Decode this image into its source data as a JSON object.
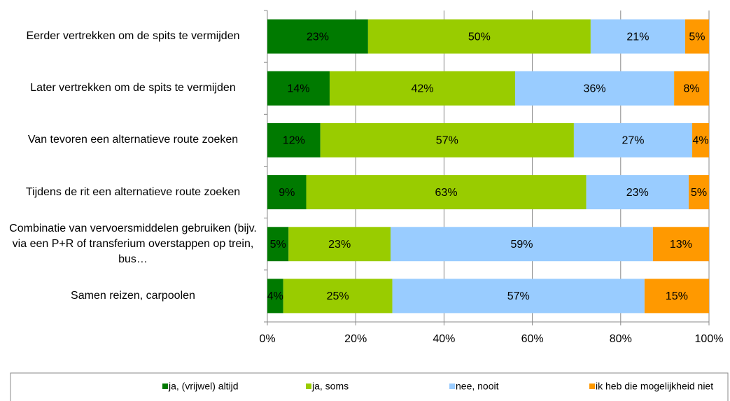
{
  "chart_data": {
    "type": "stacked_bar_horizontal",
    "categories": [
      "Eerder vertrekken om de spits te vermijden",
      "Later vertrekken om de spits te vermijden",
      "Van tevoren een alternatieve route zoeken",
      "Tijdens de rit een alternatieve route zoeken",
      "Combinatie van vervoersmiddelen gebruiken (bijv. via een P+R of transferium overstappen op trein, bus…",
      "Samen reizen, carpoolen"
    ],
    "series": [
      {
        "name": "ja, (vrijwel) altijd",
        "color": "#007a00",
        "values": [
          22.8,
          14.1,
          12.0,
          8.8,
          4.8,
          3.6
        ],
        "value_labels": [
          "23%",
          "14%",
          "12%",
          "9%",
          "5%",
          "4%"
        ]
      },
      {
        "name": "ja, soms",
        "color": "#99cc00",
        "values": [
          50.4,
          42.0,
          57.4,
          63.4,
          23.1,
          24.7
        ],
        "value_labels": [
          "50%",
          "42%",
          "57%",
          "63%",
          "23%",
          "25%"
        ]
      },
      {
        "name": "nee, nooit",
        "color": "#99ccff",
        "values": [
          21.4,
          36.0,
          26.8,
          23.2,
          59.4,
          57.1
        ],
        "value_labels": [
          "21%",
          "36%",
          "27%",
          "23%",
          "59%",
          "57%"
        ]
      },
      {
        "name": "ik heb die mogelijkheid niet",
        "color": "#ff9900",
        "values": [
          5.4,
          7.9,
          3.8,
          4.6,
          12.7,
          14.6
        ],
        "value_labels": [
          "5%",
          "8%",
          "4%",
          "5%",
          "13%",
          "15%"
        ]
      }
    ],
    "xlim": [
      0,
      100
    ],
    "xticks": [
      {
        "value": 0,
        "label": "0%"
      },
      {
        "value": 20,
        "label": "20%"
      },
      {
        "value": 40,
        "label": "40%"
      },
      {
        "value": 60,
        "label": "60%"
      },
      {
        "value": 80,
        "label": "80%"
      },
      {
        "value": 100,
        "label": "100%"
      }
    ],
    "grid": true,
    "legend": "bottom"
  }
}
